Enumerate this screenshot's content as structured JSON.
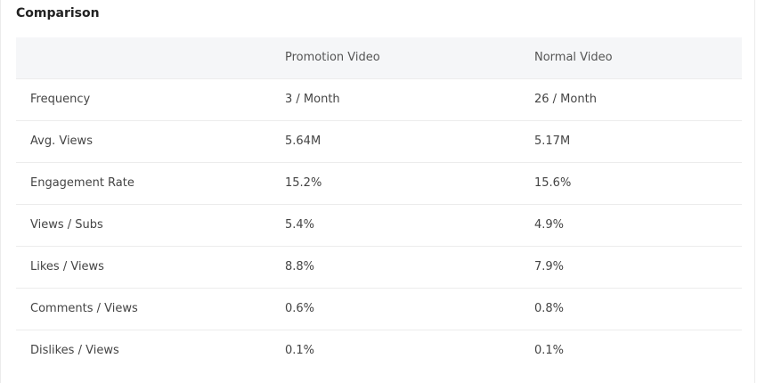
{
  "card": {
    "title": "Comparison"
  },
  "table": {
    "columns": [
      "",
      "Promotion Video",
      "Normal Video"
    ],
    "rows": [
      [
        "Frequency",
        "3 / Month",
        "26 / Month"
      ],
      [
        "Avg. Views",
        "5.64M",
        "5.17M"
      ],
      [
        "Engagement Rate",
        "15.2%",
        "15.6%"
      ],
      [
        "Views / Subs",
        "5.4%",
        "4.9%"
      ],
      [
        "Likes / Views",
        "8.8%",
        "7.9%"
      ],
      [
        "Comments / Views",
        "0.6%",
        "0.8%"
      ],
      [
        "Dislikes / Views",
        "0.1%",
        "0.1%"
      ]
    ]
  }
}
